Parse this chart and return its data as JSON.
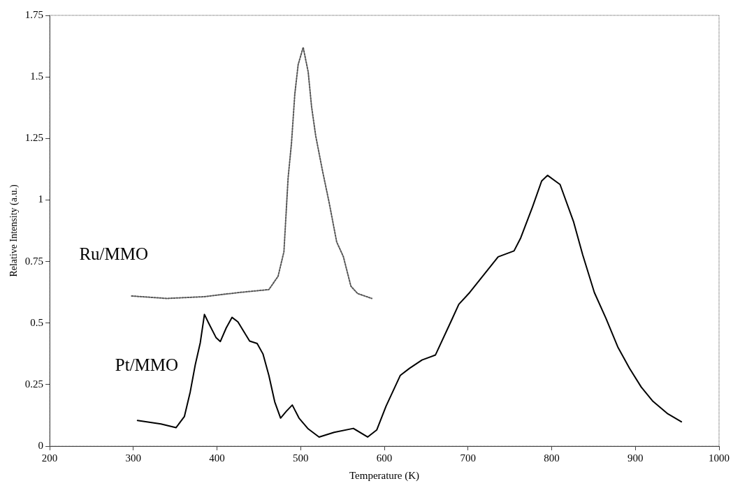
{
  "chart_data": {
    "type": "line",
    "xlabel": "Temperature (K)",
    "ylabel": "Relative Intensity (a.u.)",
    "xlim": [
      200,
      1000
    ],
    "xticks": [
      200,
      300,
      400,
      500,
      600,
      700,
      800,
      900,
      1000
    ],
    "ylim": [
      0,
      1.75
    ],
    "yticks": [
      0,
      0.25,
      0.5,
      0.75,
      1,
      1.25,
      1.5,
      1.75
    ],
    "grid": false,
    "legend": false,
    "marker": "none",
    "series": [
      {
        "name": "Ru/MMO",
        "color": "#555555",
        "line_style": "dotted",
        "x": [
          298,
          340,
          384,
          426,
          462,
          473,
          480,
          485,
          489,
          493,
          497,
          503,
          509,
          513,
          518,
          526,
          534,
          543,
          551,
          560,
          568,
          585
        ],
        "values": [
          0.61,
          0.6,
          0.607,
          0.624,
          0.636,
          0.69,
          0.79,
          1.09,
          1.23,
          1.43,
          1.55,
          1.62,
          1.52,
          1.38,
          1.26,
          1.12,
          0.99,
          0.83,
          0.77,
          0.65,
          0.62,
          0.6
        ]
      },
      {
        "name": "Pt/MMO",
        "color": "#000000",
        "line_style": "solid",
        "x": [
          305,
          333,
          351,
          361,
          368,
          374,
          380,
          385,
          390,
          399,
          404,
          411,
          418,
          425,
          433,
          439,
          448,
          455,
          462,
          469,
          476,
          483,
          490,
          498,
          509,
          522,
          540,
          563,
          580,
          591,
          602,
          619,
          630,
          645,
          661,
          680,
          689,
          702,
          719,
          736,
          755,
          763,
          777,
          788,
          795,
          810,
          826,
          837,
          851,
          865,
          879,
          893,
          907,
          921,
          938,
          955
        ],
        "values": [
          0.104,
          0.09,
          0.075,
          0.12,
          0.22,
          0.33,
          0.42,
          0.535,
          0.5,
          0.44,
          0.425,
          0.48,
          0.523,
          0.505,
          0.46,
          0.427,
          0.417,
          0.374,
          0.287,
          0.18,
          0.114,
          0.142,
          0.167,
          0.114,
          0.07,
          0.037,
          0.056,
          0.072,
          0.037,
          0.066,
          0.162,
          0.287,
          0.316,
          0.35,
          0.37,
          0.509,
          0.576,
          0.624,
          0.697,
          0.769,
          0.793,
          0.846,
          0.971,
          1.077,
          1.1,
          1.063,
          0.913,
          0.778,
          0.624,
          0.518,
          0.403,
          0.316,
          0.24,
          0.182,
          0.133,
          0.099
        ]
      }
    ]
  }
}
